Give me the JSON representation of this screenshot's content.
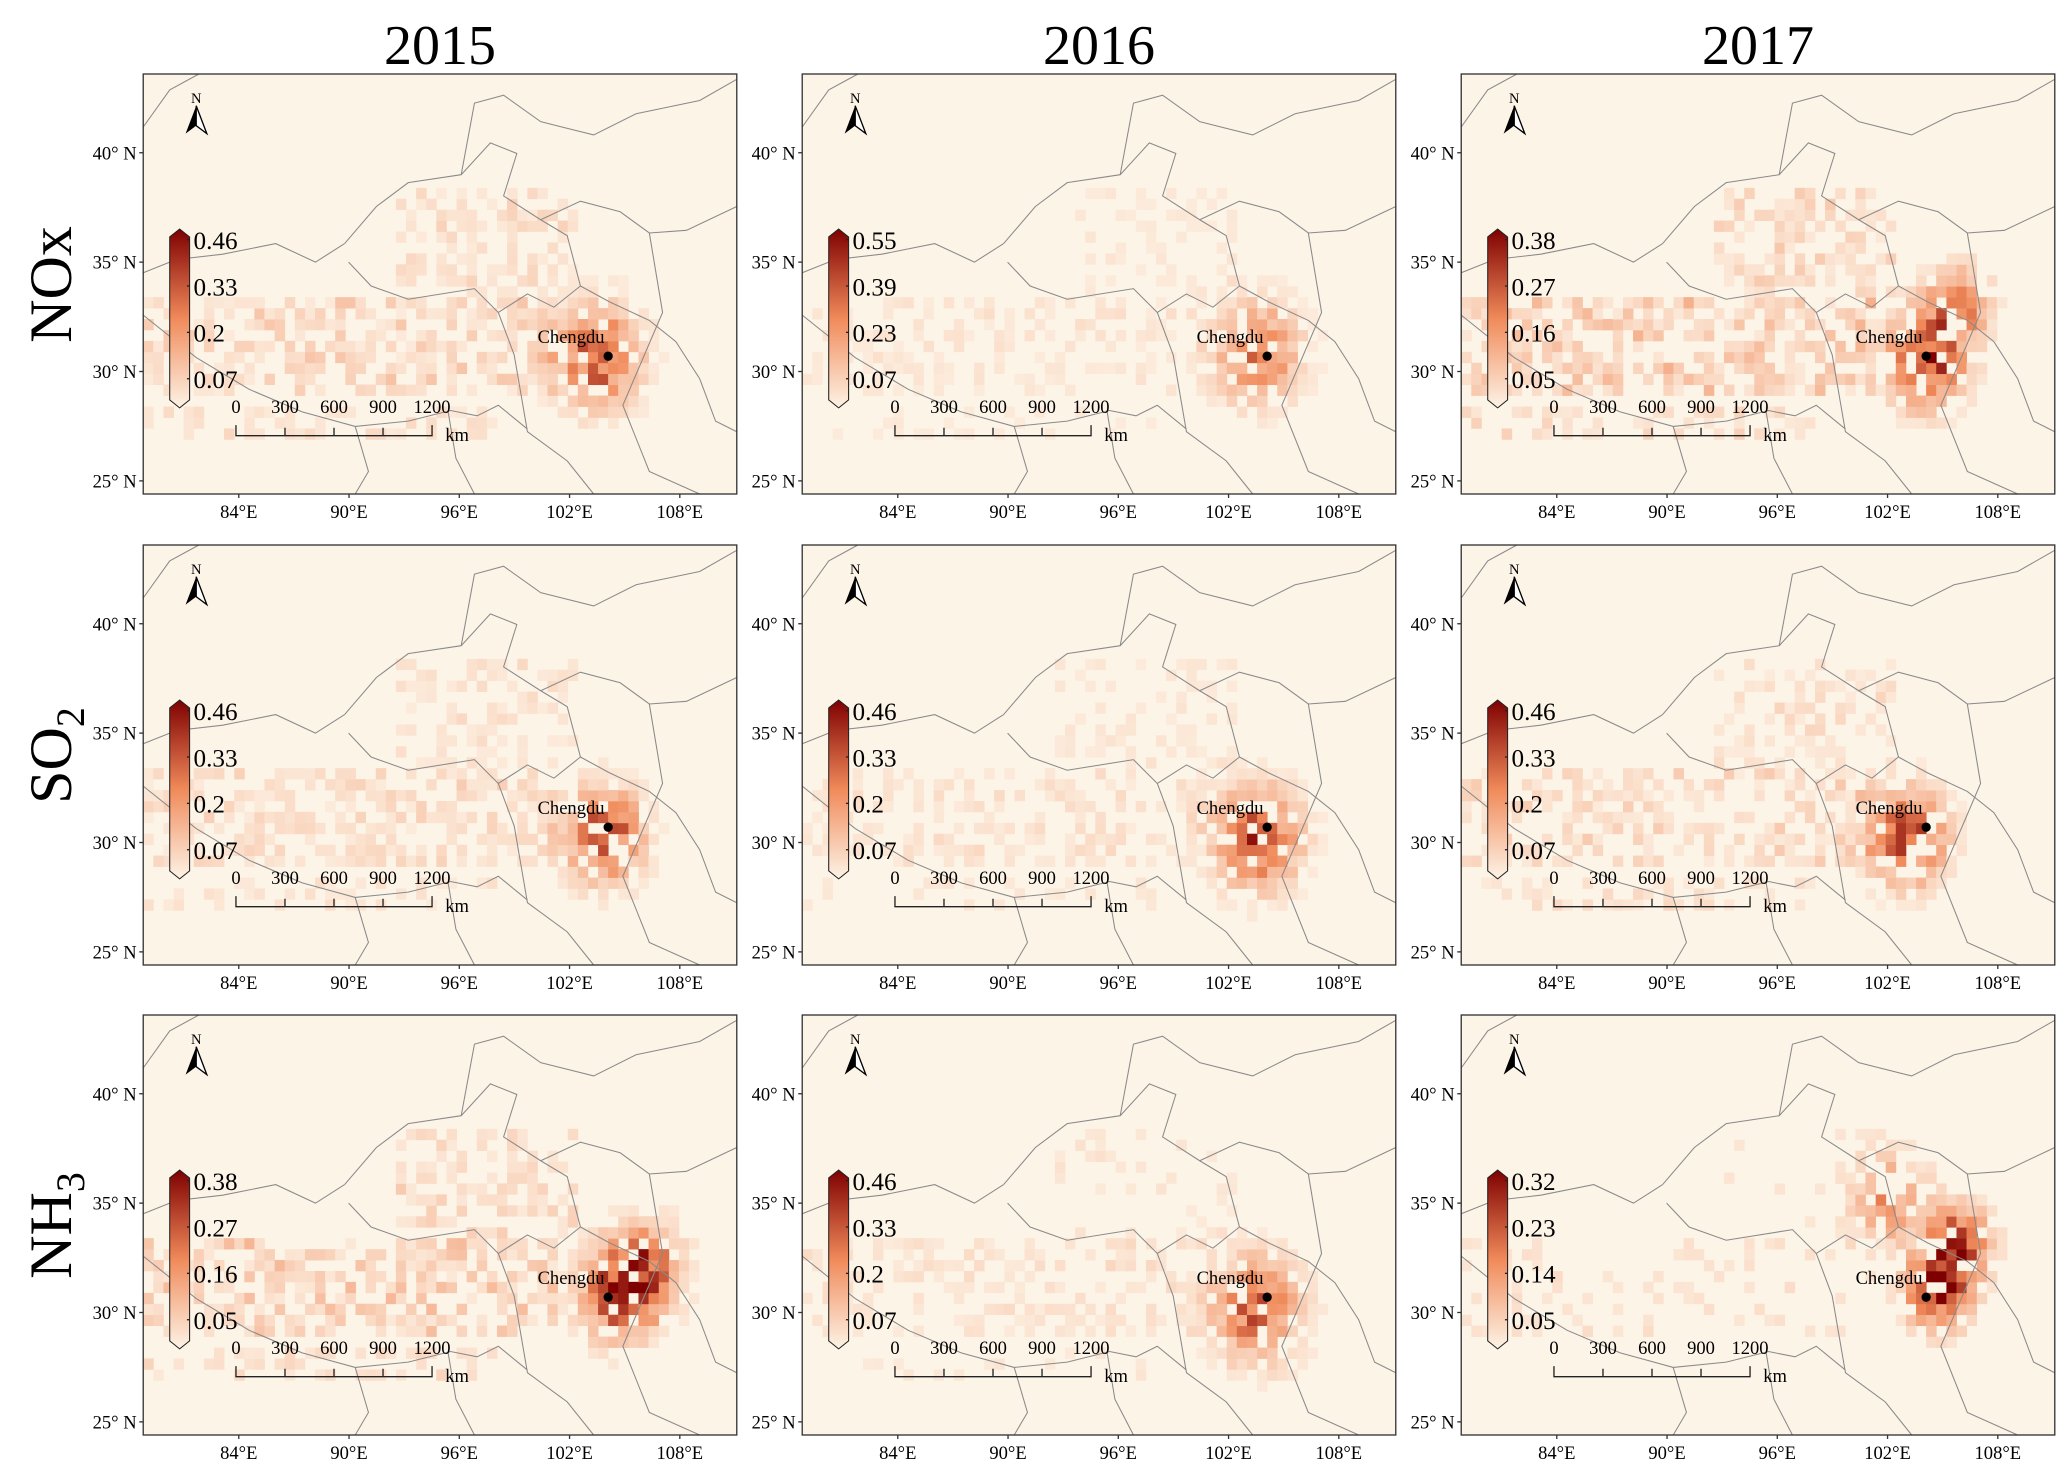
{
  "years": [
    "2015",
    "2016",
    "2017"
  ],
  "rows": [
    {
      "pollutant": "NOx",
      "main": "NOx",
      "sub": ""
    },
    {
      "pollutant": "SO2",
      "main": "SO",
      "sub": "2"
    },
    {
      "pollutant": "NH3",
      "main": "NH",
      "sub": "3"
    }
  ],
  "axes": {
    "lat_labels": [
      "40° N",
      "35° N",
      "30° N",
      "25° N"
    ],
    "lat_values": [
      40,
      35,
      30,
      25
    ],
    "lon_labels": [
      "84°E",
      "90°E",
      "96°E",
      "102°E",
      "108°E"
    ],
    "lon_values": [
      84,
      90,
      96,
      102,
      108
    ],
    "lon_range": [
      78.8,
      111.1
    ],
    "lat_range": [
      24.4,
      43.6
    ]
  },
  "city": {
    "name": "Chengdu",
    "lon": 104.1,
    "lat": 30.7
  },
  "north_label": "N",
  "scale_bar": {
    "labels": [
      "0",
      "300",
      "600",
      "900",
      "1200"
    ],
    "unit": "km"
  },
  "colormap": {
    "low": "#fdf3e6",
    "mid": "#f08a5a",
    "high": "#7f0000",
    "background": "#fdf4e8",
    "border": "#8a8a8a"
  },
  "panels": [
    {
      "row": 0,
      "col": 0,
      "colorbar_ticks": [
        "0.46",
        "0.33",
        "0.2",
        "0.07"
      ],
      "max": 0.46,
      "seed": 11,
      "hotspots": [
        {
          "lon": 103.2,
          "lat": 30.5,
          "v": 0.36,
          "s": 1.5
        }
      ],
      "band": 0.09
    },
    {
      "row": 0,
      "col": 1,
      "colorbar_ticks": [
        "0.55",
        "0.39",
        "0.23",
        "0.07"
      ],
      "max": 0.55,
      "seed": 12,
      "hotspots": [
        {
          "lon": 103.3,
          "lat": 30.6,
          "v": 0.33,
          "s": 1.5
        }
      ],
      "band": 0.05
    },
    {
      "row": 0,
      "col": 2,
      "colorbar_ticks": [
        "0.38",
        "0.27",
        "0.16",
        "0.05"
      ],
      "max": 0.38,
      "seed": 13,
      "hotspots": [
        {
          "lon": 103.8,
          "lat": 30.3,
          "v": 0.34,
          "s": 1.4
        },
        {
          "lon": 105.5,
          "lat": 32.8,
          "v": 0.2,
          "s": 1.2
        }
      ],
      "band": 0.1
    },
    {
      "row": 1,
      "col": 0,
      "colorbar_ticks": [
        "0.46",
        "0.33",
        "0.2",
        "0.07"
      ],
      "max": 0.46,
      "seed": 21,
      "hotspots": [
        {
          "lon": 103.6,
          "lat": 30.1,
          "v": 0.36,
          "s": 1.4
        }
      ],
      "band": 0.07
    },
    {
      "row": 1,
      "col": 1,
      "colorbar_ticks": [
        "0.46",
        "0.33",
        "0.2",
        "0.07"
      ],
      "max": 0.46,
      "seed": 22,
      "hotspots": [
        {
          "lon": 103.3,
          "lat": 30.0,
          "v": 0.36,
          "s": 1.5
        }
      ],
      "band": 0.05
    },
    {
      "row": 1,
      "col": 2,
      "colorbar_ticks": [
        "0.46",
        "0.33",
        "0.2",
        "0.07"
      ],
      "max": 0.46,
      "seed": 23,
      "hotspots": [
        {
          "lon": 102.8,
          "lat": 30.0,
          "v": 0.38,
          "s": 1.4
        }
      ],
      "band": 0.08
    },
    {
      "row": 2,
      "col": 0,
      "colorbar_ticks": [
        "0.38",
        "0.27",
        "0.16",
        "0.05"
      ],
      "max": 0.38,
      "seed": 31,
      "hotspots": [
        {
          "lon": 104.5,
          "lat": 30.6,
          "v": 0.32,
          "s": 1.4
        },
        {
          "lon": 105.8,
          "lat": 32.0,
          "v": 0.22,
          "s": 1.3
        }
      ],
      "band": 0.09
    },
    {
      "row": 2,
      "col": 1,
      "colorbar_ticks": [
        "0.46",
        "0.33",
        "0.2",
        "0.07"
      ],
      "max": 0.46,
      "seed": 32,
      "hotspots": [
        {
          "lon": 103.2,
          "lat": 29.9,
          "v": 0.3,
          "s": 1.6
        }
      ],
      "band": 0.05
    },
    {
      "row": 2,
      "col": 2,
      "colorbar_ticks": [
        "0.32",
        "0.23",
        "0.14",
        "0.05"
      ],
      "max": 0.32,
      "seed": 33,
      "hotspots": [
        {
          "lon": 104.4,
          "lat": 30.8,
          "v": 0.3,
          "s": 1.2
        },
        {
          "lon": 105.6,
          "lat": 33.0,
          "v": 0.25,
          "s": 1.1
        },
        {
          "lon": 102.0,
          "lat": 35.0,
          "v": 0.15,
          "s": 1.3
        }
      ],
      "band": 0.03
    }
  ]
}
